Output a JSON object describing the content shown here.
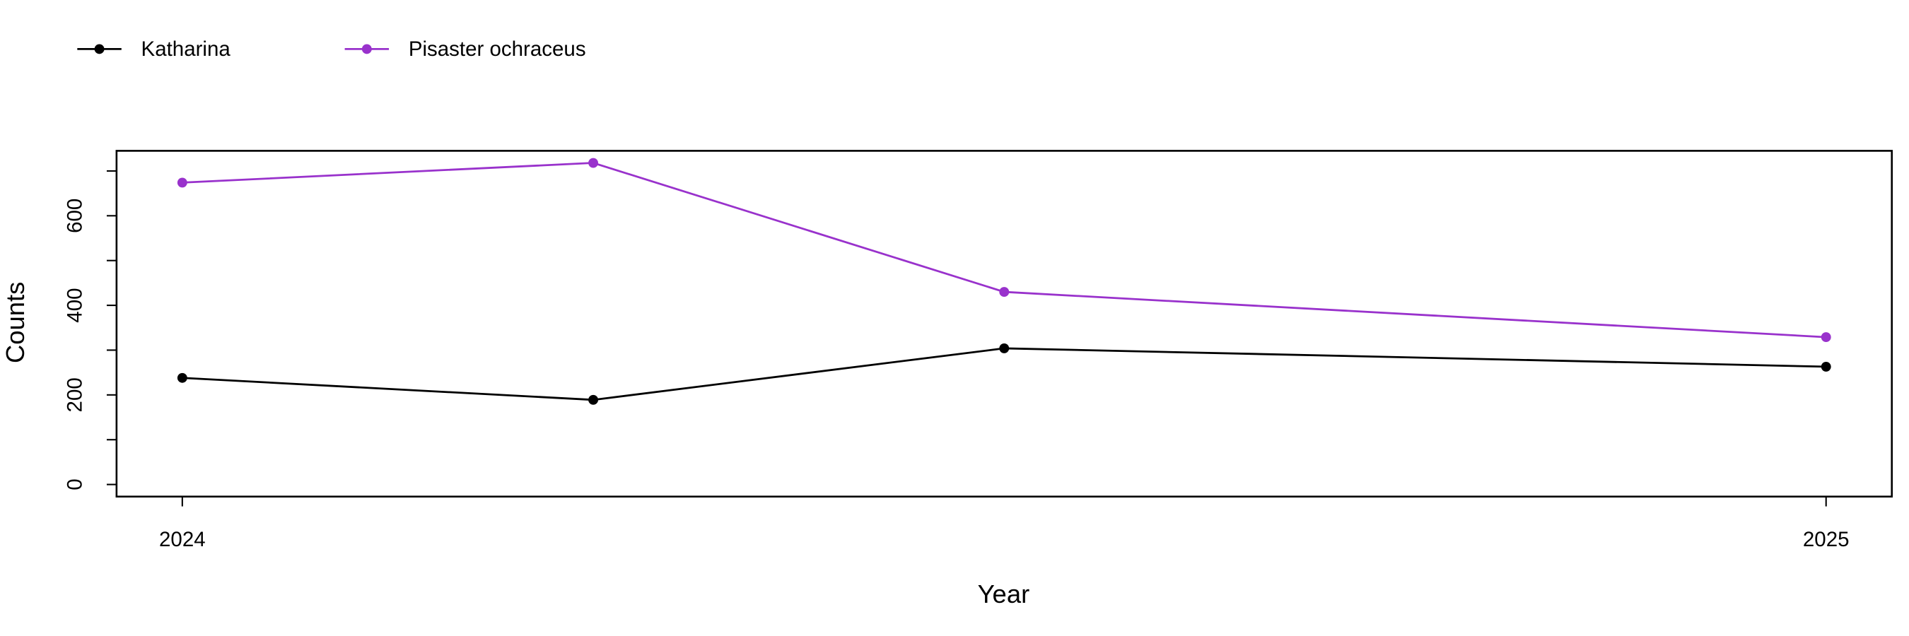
{
  "chart_data": {
    "type": "line",
    "x_label": "Year",
    "y_label": "Counts",
    "x": [
      2024,
      2024.25,
      2024.5,
      2025
    ],
    "series": [
      {
        "name": "Katharina",
        "color": "#000000",
        "values": [
          238,
          189,
          304,
          263
        ]
      },
      {
        "name": "Pisaster ochraceus",
        "color": "#9932cc",
        "values": [
          674,
          718,
          430,
          329
        ]
      }
    ],
    "xlim": [
      2023.96,
      2025.04
    ],
    "xticks": [
      2024,
      2025
    ],
    "ylim": [
      -27,
      745
    ],
    "yticks": [
      0,
      200,
      400,
      600
    ],
    "yminor_ticks": [
      100,
      300,
      500,
      700
    ],
    "legend": "top-left",
    "grid": false
  }
}
